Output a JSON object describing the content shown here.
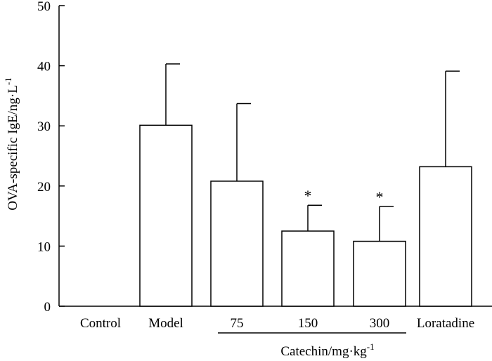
{
  "chart_data": {
    "type": "bar",
    "categories": [
      "Control",
      "Model",
      "75",
      "150",
      "300",
      "Loratadine"
    ],
    "values": [
      0,
      30.1,
      20.8,
      12.5,
      10.8,
      23.2
    ],
    "errors": [
      0,
      10.2,
      12.9,
      4.3,
      5.8,
      15.9
    ],
    "significance": [
      "",
      "",
      "",
      "*",
      "*",
      ""
    ],
    "ylabel": "OVA-specific IgE/ng·L",
    "ylabel_superscript": "-1",
    "group_label": "Catechin/mg·kg",
    "group_label_superscript": "-1",
    "group_categories": [
      "75",
      "150",
      "300"
    ],
    "ylim": [
      0,
      50
    ],
    "yticks": [
      0,
      10,
      20,
      30,
      40,
      50
    ],
    "grid": false,
    "legend": "none",
    "bar_fill": "#ffffff",
    "bar_stroke": "#000000"
  }
}
